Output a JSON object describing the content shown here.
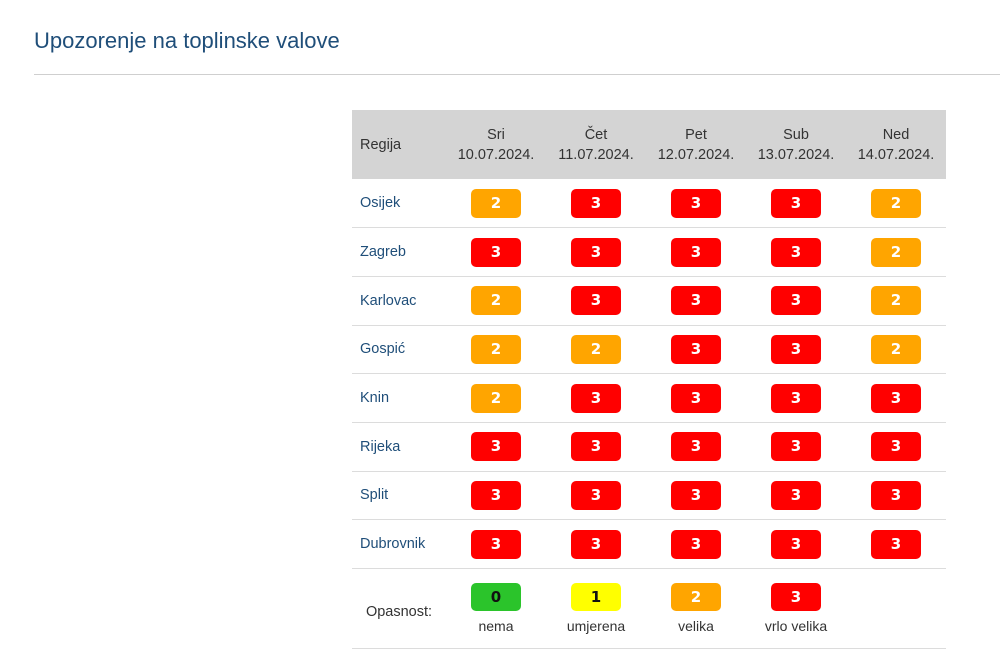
{
  "page": {
    "title": "Upozorenje na toplinske valove"
  },
  "table": {
    "region_header": "Regija",
    "days": [
      {
        "name": "Sri",
        "date": "10.07.2024."
      },
      {
        "name": "Čet",
        "date": "11.07.2024."
      },
      {
        "name": "Pet",
        "date": "12.07.2024."
      },
      {
        "name": "Sub",
        "date": "13.07.2024."
      },
      {
        "name": "Ned",
        "date": "14.07.2024."
      }
    ],
    "rows": [
      {
        "region": "Osijek",
        "levels": [
          "2",
          "3",
          "3",
          "3",
          "2"
        ]
      },
      {
        "region": "Zagreb",
        "levels": [
          "3",
          "3",
          "3",
          "3",
          "2"
        ]
      },
      {
        "region": "Karlovac",
        "levels": [
          "2",
          "3",
          "3",
          "3",
          "2"
        ]
      },
      {
        "region": "Gospić",
        "levels": [
          "2",
          "2",
          "3",
          "3",
          "2"
        ]
      },
      {
        "region": "Knin",
        "levels": [
          "2",
          "3",
          "3",
          "3",
          "3"
        ]
      },
      {
        "region": "Rijeka",
        "levels": [
          "3",
          "3",
          "3",
          "3",
          "3"
        ]
      },
      {
        "region": "Split",
        "levels": [
          "3",
          "3",
          "3",
          "3",
          "3"
        ]
      },
      {
        "region": "Dubrovnik",
        "levels": [
          "3",
          "3",
          "3",
          "3",
          "3"
        ]
      }
    ]
  },
  "legend": {
    "label": "Opasnost:",
    "items": [
      {
        "level": "0",
        "text": "nema",
        "color": "#2bc42b"
      },
      {
        "level": "1",
        "text": "umjerena",
        "color": "#ffff00"
      },
      {
        "level": "2",
        "text": "velika",
        "color": "#ffa500"
      },
      {
        "level": "3",
        "text": "vrlo velika",
        "color": "#ff0000"
      }
    ]
  }
}
